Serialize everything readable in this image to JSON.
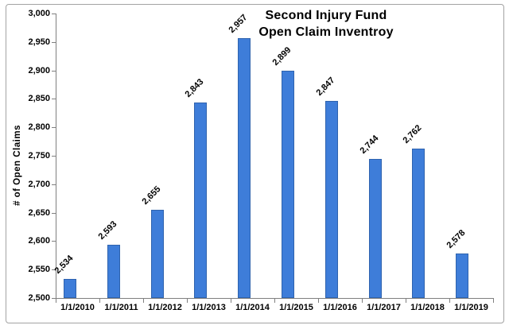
{
  "colors": {
    "bar_fill": "#3E7DD9",
    "bar_border": "#2F63AE",
    "axis": "#808080",
    "text": "#000000",
    "frame_border": "#A3A3A3",
    "background": "#FFFFFF"
  },
  "chart_data": {
    "type": "bar",
    "title_lines": [
      "Second Injury Fund",
      "Open Claim Inventroy"
    ],
    "ylabel": "# of Open Claims",
    "xlabel": "",
    "categories": [
      "1/1/2010",
      "1/1/2011",
      "1/1/2012",
      "1/1/2013",
      "1/1/2014",
      "1/1/2015",
      "1/1/2016",
      "1/1/2017",
      "1/1/2018",
      "1/1/2019"
    ],
    "values": [
      2534,
      2593,
      2655,
      2843,
      2957,
      2899,
      2847,
      2744,
      2762,
      2578
    ],
    "value_labels": [
      "2,534",
      "2,593",
      "2,655",
      "2,843",
      "2,957",
      "2,899",
      "2,847",
      "2,744",
      "2,762",
      "2,578"
    ],
    "ylim": [
      2500,
      3000
    ],
    "ytick_step": 50,
    "ytick_labels": [
      "3,000",
      "2,950",
      "2,900",
      "2,850",
      "2,800",
      "2,750",
      "2,700",
      "2,650",
      "2,600",
      "2,550",
      "2,500"
    ],
    "grid": false,
    "legend": false,
    "value_label_rotation_deg": 45
  }
}
